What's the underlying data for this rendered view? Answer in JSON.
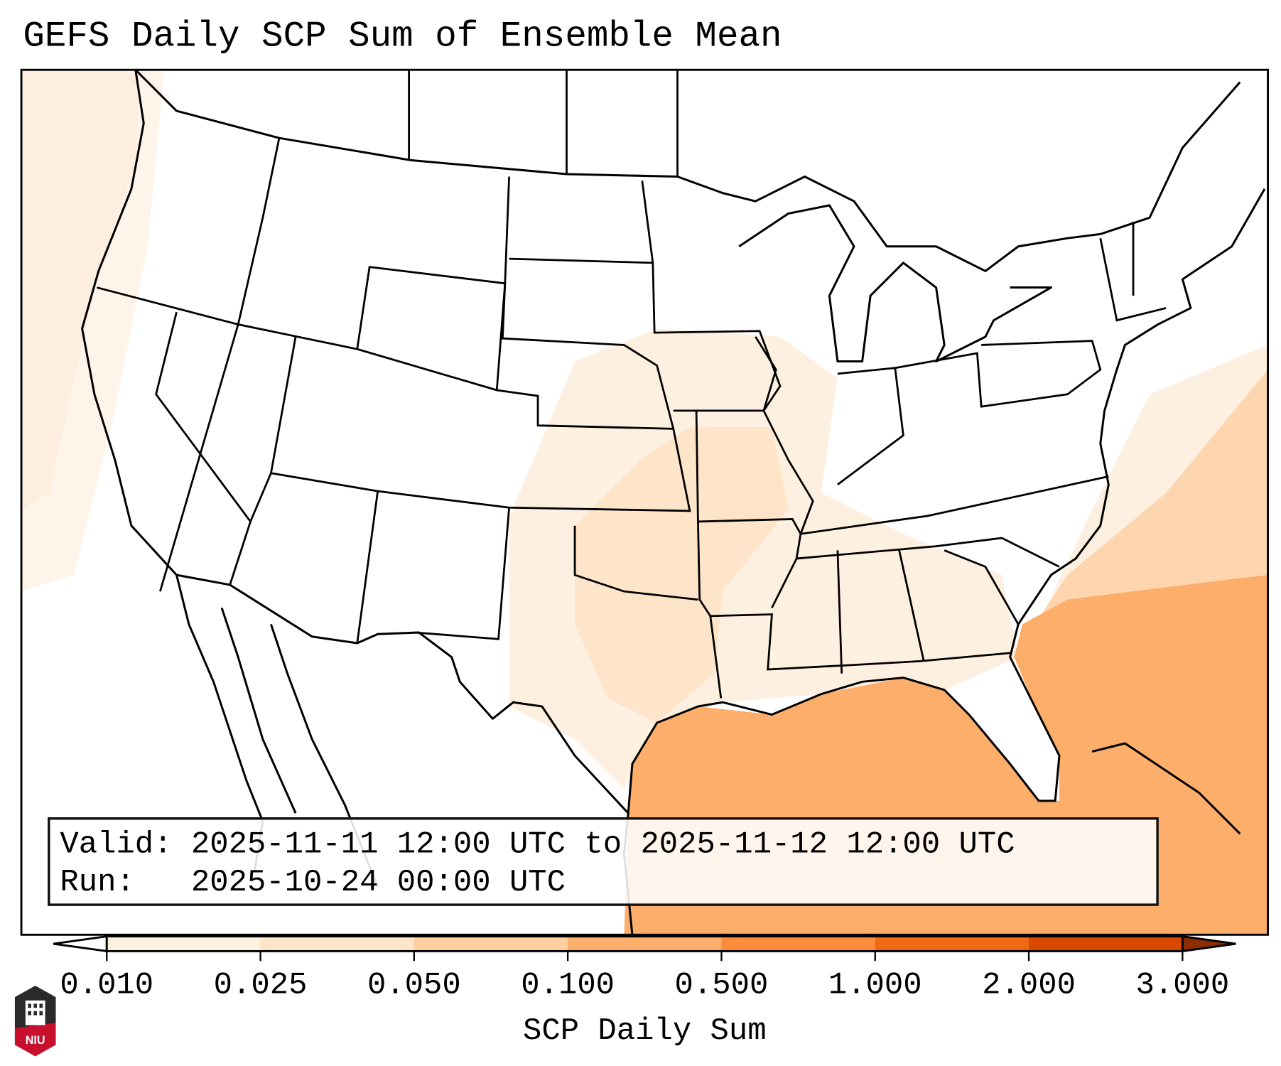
{
  "title": "GEFS Daily SCP Sum of Ensemble Mean",
  "info": {
    "valid_label": "Valid:",
    "valid_value": "2025-11-11 12:00 UTC to 2025-11-12 12:00 UTC",
    "run_label": "Run:",
    "run_value": "2025-10-24 00:00 UTC"
  },
  "colorbar": {
    "label": "SCP Daily Sum",
    "ticks": [
      "0.010",
      "0.025",
      "0.050",
      "0.100",
      "0.500",
      "1.000",
      "2.000",
      "3.000"
    ],
    "colors": [
      "#fef0e1",
      "#fee4c9",
      "#fdd0a2",
      "#fdae6b",
      "#fd8d3c",
      "#f16913",
      "#d94801"
    ],
    "under_color": "#ffffff",
    "over_color": "#8c2d04"
  },
  "logo": {
    "text": "NIU"
  }
}
